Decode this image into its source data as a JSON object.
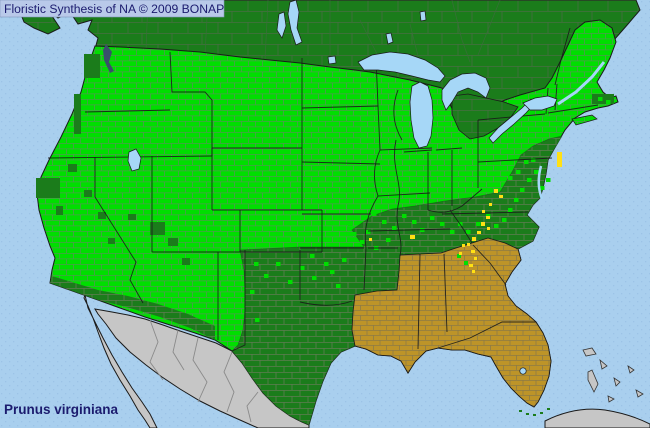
{
  "header": {
    "title": "Floristic Synthesis of NA © 2009 BONAP"
  },
  "footer": {
    "species_label": "Prunus virginiana"
  },
  "map": {
    "colors": {
      "ocean": "#A9CFEE",
      "ocean_dot": "#9CC3E6",
      "county_present_green": "#00DE00",
      "state_present_dark_green": "#1B7C1B",
      "southeast_absent_tan": "#BD9428",
      "outside_flora_gray": "#C6C6C6",
      "rare_yellow": "#FFE014",
      "lake_blue": "#A6D7F7",
      "sound_dark_blue": "#39506B",
      "label_navy": "#1B1B6E",
      "title_bg": "#B9C9E9"
    },
    "markers": {
      "rare_yellow_counties": [
        [
          557,
          152,
          5,
          15
        ],
        [
          494,
          189,
          4,
          4
        ],
        [
          499,
          195,
          4,
          3
        ],
        [
          489,
          203,
          3,
          3
        ],
        [
          482,
          210,
          3,
          3
        ],
        [
          486,
          216,
          4,
          3
        ],
        [
          481,
          222,
          4,
          4
        ],
        [
          487,
          227,
          3,
          3
        ],
        [
          477,
          231,
          4,
          3
        ],
        [
          472,
          237,
          4,
          4
        ],
        [
          467,
          243,
          3,
          3
        ],
        [
          471,
          250,
          4,
          3
        ],
        [
          462,
          244,
          3,
          3
        ],
        [
          459,
          252,
          3,
          3
        ],
        [
          474,
          257,
          3,
          3
        ],
        [
          469,
          264,
          4,
          3
        ],
        [
          472,
          270,
          3,
          3
        ],
        [
          410,
          235,
          5,
          4
        ],
        [
          369,
          238,
          3,
          3
        ]
      ],
      "scattered_present_counties": [
        [
          372,
          212
        ],
        [
          382,
          220
        ],
        [
          392,
          226
        ],
        [
          366,
          230
        ],
        [
          402,
          214
        ],
        [
          412,
          220
        ],
        [
          420,
          228
        ],
        [
          430,
          216
        ],
        [
          440,
          222
        ],
        [
          450,
          230
        ],
        [
          458,
          222
        ],
        [
          466,
          230
        ],
        [
          476,
          222
        ],
        [
          486,
          214
        ],
        [
          494,
          224
        ],
        [
          502,
          218
        ],
        [
          508,
          208
        ],
        [
          514,
          198
        ],
        [
          520,
          188
        ],
        [
          527,
          178
        ],
        [
          534,
          170
        ],
        [
          516,
          170
        ],
        [
          524,
          160
        ],
        [
          508,
          176
        ],
        [
          540,
          186
        ],
        [
          546,
          178
        ],
        [
          531,
          158
        ],
        [
          254,
          262
        ],
        [
          264,
          274
        ],
        [
          276,
          262
        ],
        [
          288,
          280
        ],
        [
          300,
          266
        ],
        [
          312,
          276
        ],
        [
          324,
          262
        ],
        [
          336,
          284
        ],
        [
          250,
          290
        ],
        [
          310,
          254
        ],
        [
          342,
          258
        ],
        [
          330,
          270
        ],
        [
          255,
          318
        ],
        [
          352,
          232
        ],
        [
          360,
          240
        ],
        [
          374,
          246
        ],
        [
          386,
          238
        ],
        [
          348,
          222
        ],
        [
          457,
          254,
          4,
          4
        ],
        [
          464,
          261,
          4,
          4
        ],
        [
          598,
          97
        ],
        [
          606,
          100
        ]
      ],
      "scattered_dark_counties": [
        [
          84,
          54,
          16,
          24
        ],
        [
          74,
          94,
          7,
          40
        ],
        [
          36,
          178,
          24,
          20
        ],
        [
          68,
          164,
          9,
          8
        ],
        [
          84,
          190,
          8,
          7
        ],
        [
          98,
          212,
          8,
          7
        ],
        [
          108,
          238,
          7,
          6
        ],
        [
          150,
          222,
          15,
          13
        ],
        [
          168,
          238,
          10,
          8
        ],
        [
          128,
          214,
          8,
          6
        ],
        [
          56,
          206,
          7,
          9
        ],
        [
          182,
          258,
          8,
          7
        ],
        [
          592,
          94,
          22,
          10
        ],
        [
          519,
          410,
          3,
          2
        ],
        [
          526,
          413,
          3,
          2
        ],
        [
          533,
          414,
          3,
          2
        ],
        [
          540,
          412,
          3,
          2
        ],
        [
          547,
          408,
          3,
          2
        ]
      ]
    }
  }
}
